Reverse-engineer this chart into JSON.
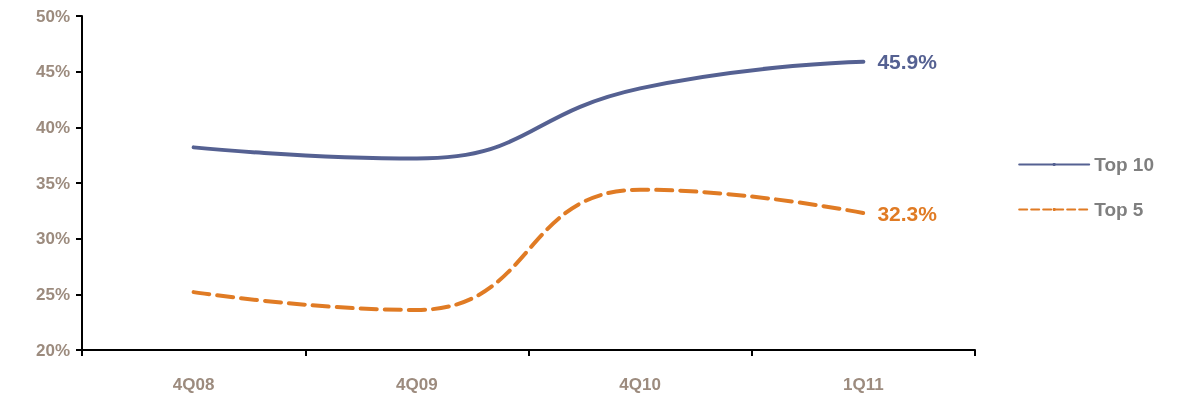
{
  "chart_data": {
    "type": "line",
    "categories": [
      "4Q08",
      "4Q09",
      "4Q10",
      "1Q11"
    ],
    "series": [
      {
        "name": "Top 10",
        "color": "#556192",
        "line_style": "solid",
        "values": [
          38.2,
          37.2,
          43.5,
          45.9
        ],
        "value_labels": [
          null,
          null,
          null,
          "45.9%"
        ]
      },
      {
        "name": "Top 5",
        "color": "#e07b24",
        "line_style": "dashed",
        "values": [
          25.2,
          23.6,
          34.4,
          32.3
        ],
        "value_labels": [
          null,
          null,
          null,
          "32.3%"
        ]
      }
    ],
    "ylim": [
      20,
      50
    ],
    "yticks": [
      {
        "value": 20,
        "label": "20%"
      },
      {
        "value": 25,
        "label": "25%"
      },
      {
        "value": 30,
        "label": "30%"
      },
      {
        "value": 35,
        "label": "35%"
      },
      {
        "value": 40,
        "label": "40%"
      },
      {
        "value": 45,
        "label": "45%"
      },
      {
        "value": 50,
        "label": "50%"
      }
    ],
    "grid": false,
    "legend": "right",
    "marker": "none"
  }
}
